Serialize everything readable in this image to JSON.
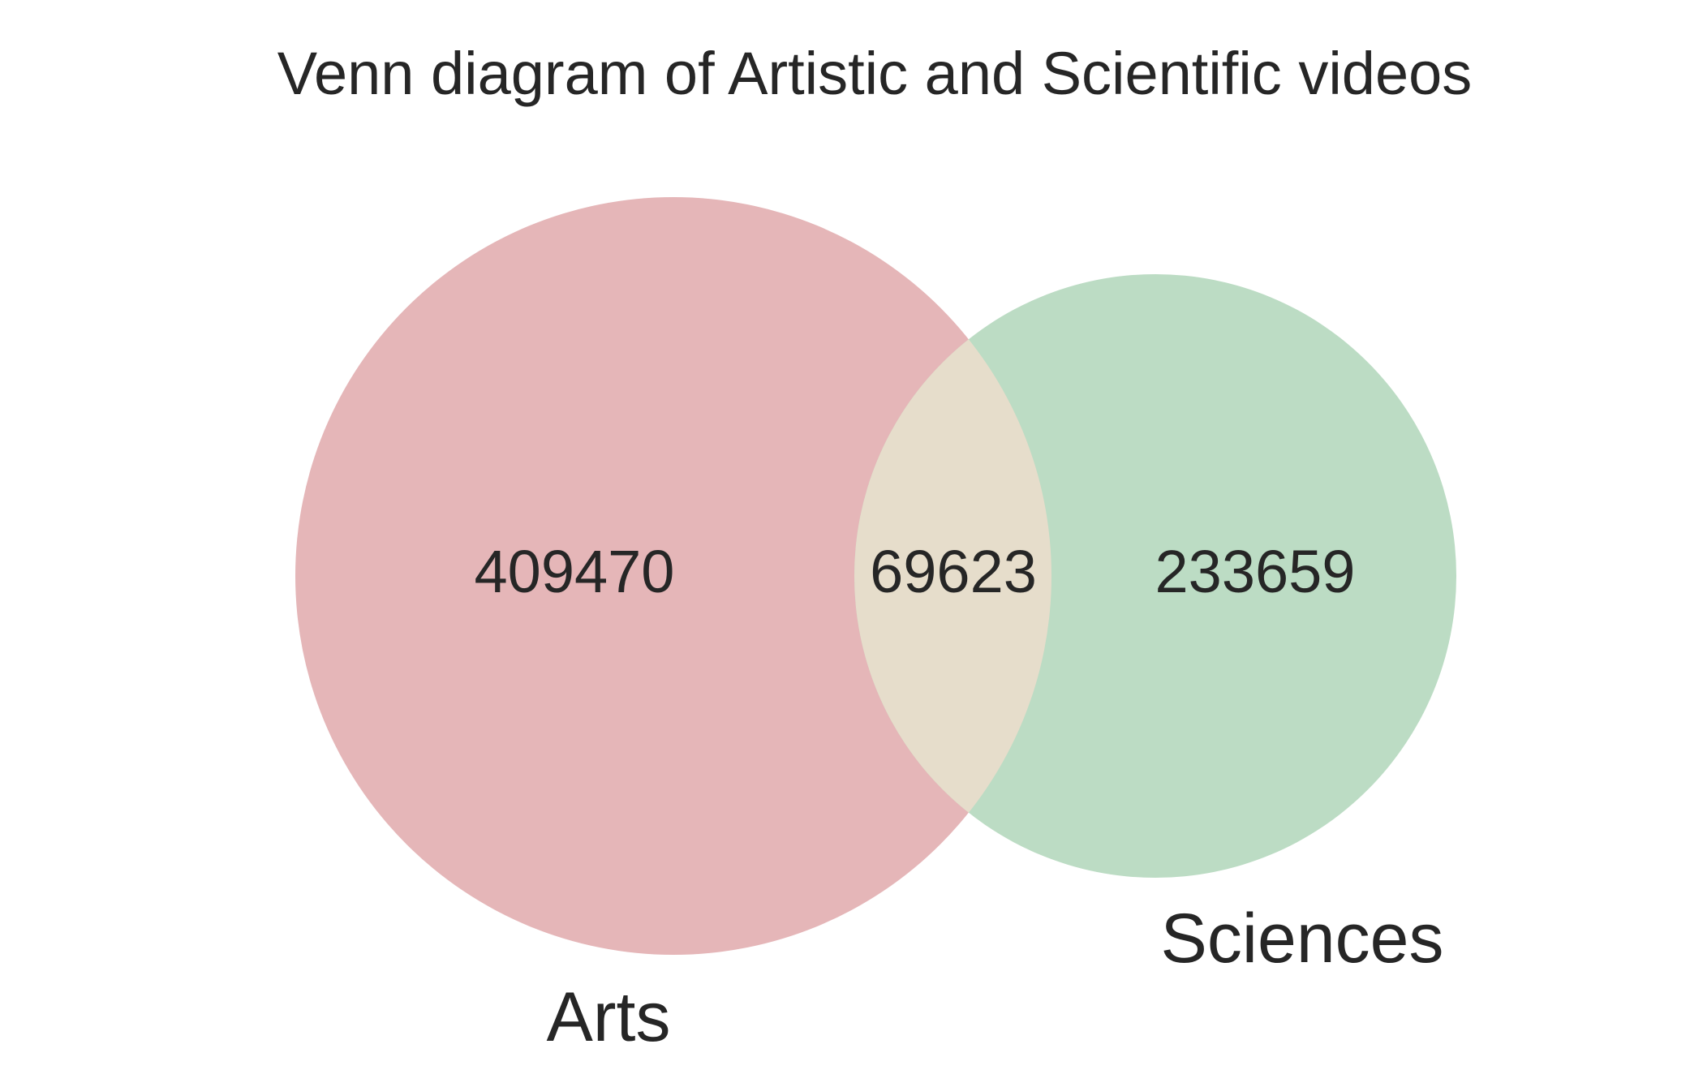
{
  "title": "Venn diagram of Artistic and Scientific videos",
  "sets": [
    {
      "name": "Arts",
      "color": "#e5b6b8"
    },
    {
      "name": "Sciences",
      "color": "#bcdcc4"
    }
  ],
  "intersection_color": "#e6ddcb",
  "chart_data": {
    "type": "venn",
    "title": "Venn diagram of Artistic and Scientific videos",
    "sets": [
      "Arts",
      "Sciences"
    ],
    "regions": {
      "arts_only": 409470,
      "both": 69623,
      "sciences_only": 233659
    },
    "region_labels": {
      "arts_only": "409470",
      "both": "69623",
      "sciences_only": "233659"
    }
  }
}
